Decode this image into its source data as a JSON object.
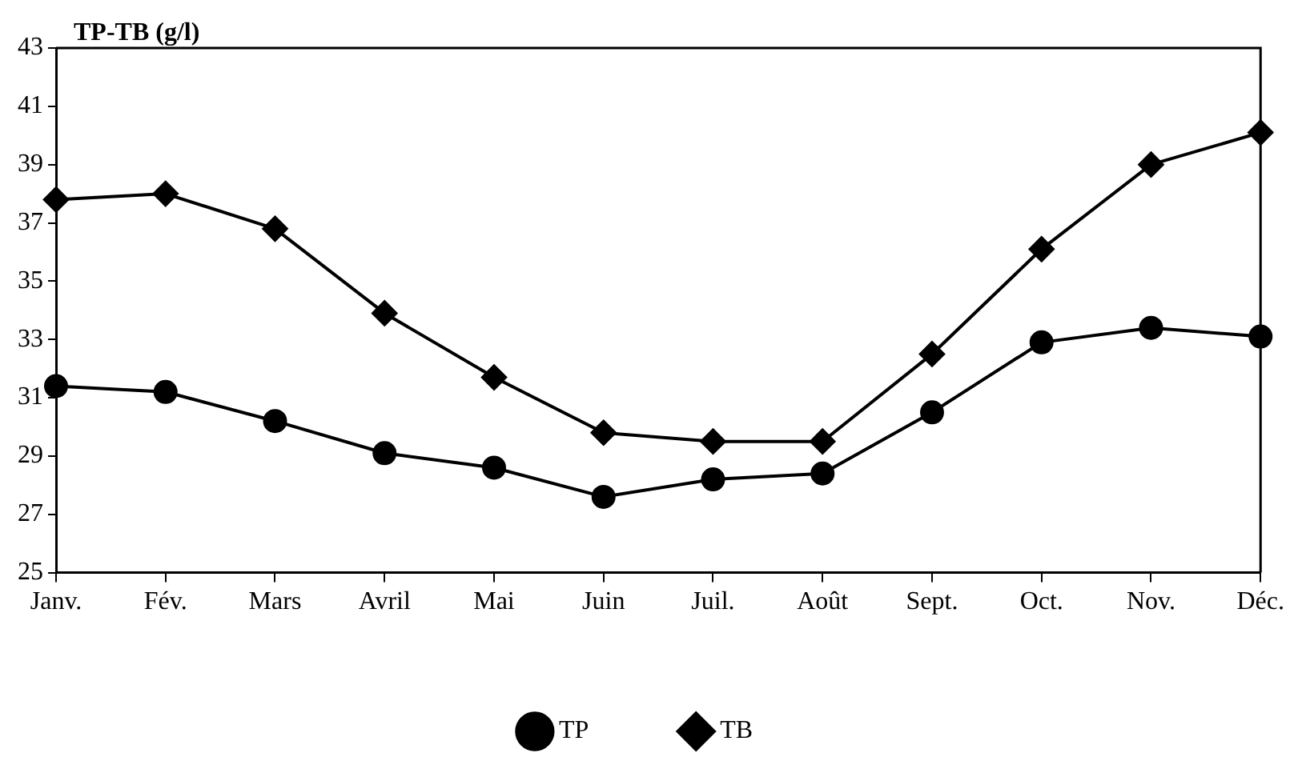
{
  "chart_data": {
    "type": "line",
    "ylabel": "TP-TB (g/l)",
    "categories": [
      "Janv.",
      "Fév.",
      "Mars",
      "Avril",
      "Mai",
      "Juin",
      "Juil.",
      "Août",
      "Sept.",
      "Oct.",
      "Nov.",
      "Déc."
    ],
    "series": [
      {
        "name": "TP",
        "color": "#000000",
        "marker": "circle",
        "values": [
          31.4,
          31.2,
          30.2,
          29.1,
          28.6,
          27.6,
          28.2,
          28.4,
          30.5,
          32.9,
          33.4,
          33.1
        ]
      },
      {
        "name": "TB",
        "color": "#000000",
        "marker": "diamond",
        "values": [
          37.8,
          38.0,
          36.8,
          33.9,
          31.7,
          29.8,
          29.5,
          29.5,
          32.5,
          36.1,
          39.0,
          40.1
        ]
      }
    ],
    "ylim": [
      25,
      43
    ],
    "yticks": [
      25,
      27,
      29,
      31,
      33,
      35,
      37,
      39,
      41,
      43
    ],
    "grid": false,
    "legend": "bottom",
    "line_style": "solid"
  }
}
